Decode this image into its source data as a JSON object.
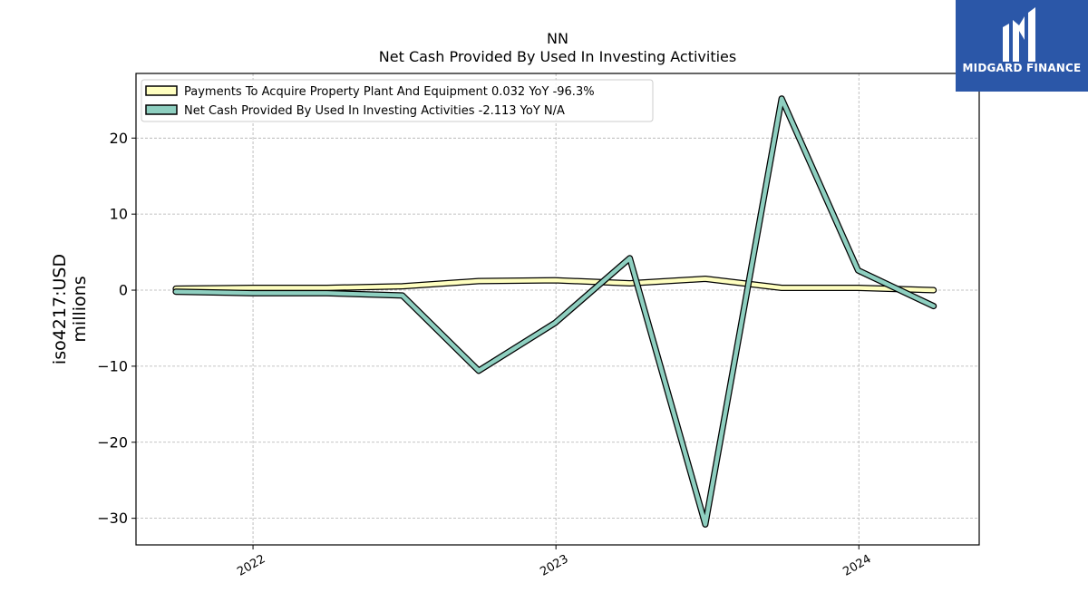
{
  "chart_data": {
    "type": "line",
    "title": "NN",
    "subtitle": "Net Cash Provided By Used In Investing Activities",
    "ylabel": "iso4217:USD\nmillions",
    "xlabel": "",
    "ylim": [
      -33.5,
      28.5
    ],
    "xlim": [
      "2021-08-13",
      "2024-05-25"
    ],
    "yticks": [
      -30,
      -20,
      -10,
      0,
      10,
      20
    ],
    "ytick_labels": [
      "−30",
      "−20",
      "−10",
      "0",
      "10",
      "20"
    ],
    "xticks": [
      "2022-01-01",
      "2023-01-01",
      "2024-01-01"
    ],
    "xtick_labels": [
      "2022",
      "2023",
      "2024"
    ],
    "grid": true,
    "legend_position": "top-left",
    "series": [
      {
        "name": "Payments To Acquire Property Plant And Equipment  0.032 YoY -96.3%",
        "color": "#ffffc0",
        "x": [
          "2021-09-30",
          "2021-12-31",
          "2022-03-31",
          "2022-06-30",
          "2022-09-30",
          "2022-12-31",
          "2023-03-31",
          "2023-06-30",
          "2023-09-30",
          "2023-12-31",
          "2024-03-31"
        ],
        "values": [
          0.2,
          0.3,
          0.3,
          0.5,
          1.2,
          1.3,
          0.9,
          1.5,
          0.3,
          0.3,
          0.0
        ]
      },
      {
        "name": "Net Cash Provided By Used In Investing Activities  -2.113 YoY N/A",
        "color": "#8ecfc0",
        "x": [
          "2021-09-30",
          "2021-12-31",
          "2022-03-31",
          "2022-06-30",
          "2022-09-30",
          "2022-12-31",
          "2023-03-31",
          "2023-06-30",
          "2023-09-30",
          "2023-12-31",
          "2024-03-31"
        ],
        "values": [
          -0.2,
          -0.4,
          -0.4,
          -0.7,
          -10.6,
          -4.3,
          4.2,
          -30.8,
          25.2,
          2.6,
          -2.1
        ]
      }
    ]
  },
  "logo": {
    "text": "MIDGARD FINANCE",
    "color": "#2b57a8"
  }
}
